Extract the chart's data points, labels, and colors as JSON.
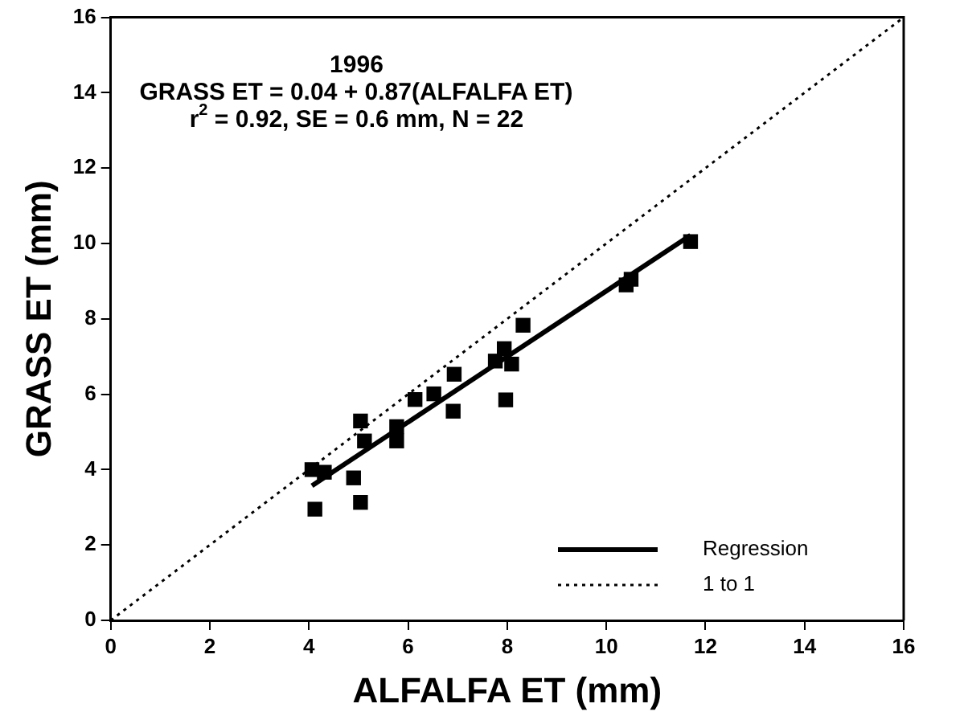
{
  "chart_data": {
    "type": "scatter",
    "xlabel": "ALFALFA ET (mm)",
    "ylabel": "GRASS ET (mm)",
    "annotations": [
      "1996",
      "GRASS ET = 0.04 + 0.87(ALFALFA ET)",
      "r$^{2}$ = 0.92, SE = 0.6 mm, N = 22"
    ],
    "xlim": [
      0,
      16
    ],
    "xticks": [
      0,
      2,
      4,
      6,
      8,
      10,
      12,
      14,
      16
    ],
    "ylim": [
      0,
      16
    ],
    "yticks": [
      0,
      2,
      4,
      6,
      8,
      10,
      12,
      14,
      16
    ],
    "grid": false,
    "legend": "bottom right",
    "marker": "square",
    "series": [
      {
        "color": "#000000",
        "x": [
          4.06,
          4.31,
          4.12,
          4.9,
          5.04,
          5.04,
          5.12,
          5.77,
          5.77,
          6.14,
          6.52,
          6.93,
          6.91,
          7.76,
          7.94,
          8.09,
          7.97,
          8.32,
          10.4,
          10.5,
          11.7
        ],
        "values": [
          4.0,
          3.93,
          2.95,
          3.78,
          3.13,
          5.29,
          4.76,
          5.14,
          4.76,
          5.86,
          6.01,
          6.53,
          5.55,
          6.88,
          7.21,
          6.8,
          5.85,
          7.83,
          8.9,
          9.05,
          10.05
        ]
      },
      {
        "type": "line",
        "name": "Regression",
        "color": "#000000",
        "line_style": "solid",
        "marker": "none",
        "x": [
          4.06,
          11.7
        ],
        "values": [
          3.57,
          10.22
        ]
      },
      {
        "type": "line",
        "name": "1 to 1",
        "color": "#000000",
        "line_style": "dotted",
        "marker": "none",
        "x": [
          0,
          16
        ],
        "values": [
          0,
          16
        ]
      }
    ]
  }
}
